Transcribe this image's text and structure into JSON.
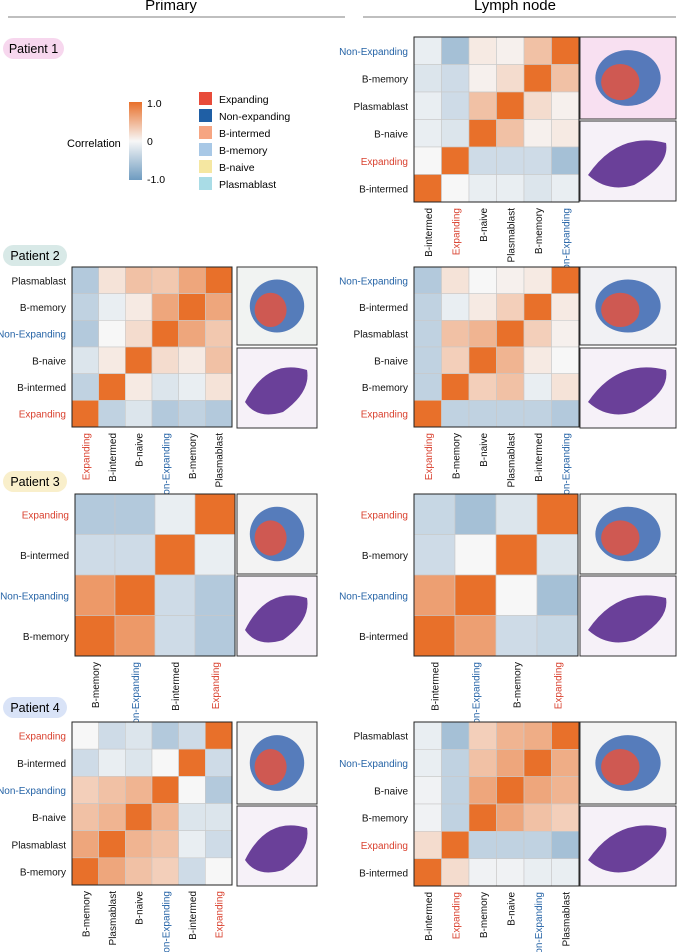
{
  "figure": {
    "col_headers": [
      "Primary",
      "Lymph node"
    ],
    "legend": {
      "title": "Correlation",
      "ticks": [
        "1.0",
        "0",
        "-1.0"
      ],
      "colors": {
        "pos": "#E8702A",
        "mid": "#F7F7F7",
        "neg": "#6E9BC0"
      },
      "celltypes": [
        {
          "label": "Expanding",
          "color": "#E84B3A"
        },
        {
          "label": "Non-expanding",
          "color": "#1F5FA5"
        },
        {
          "label": "B-intermed",
          "color": "#F6A582"
        },
        {
          "label": "B-memory",
          "color": "#A8C8E6"
        },
        {
          "label": "B-naive",
          "color": "#F5E7A1"
        },
        {
          "label": "Plasmablast",
          "color": "#A9DCE6"
        }
      ]
    },
    "label_colors": {
      "Expanding": "#D9412F",
      "Non-Expanding": "#2563A6",
      "default": "#111111"
    },
    "patients": [
      {
        "label": "Patient 1",
        "badge_color": "#F7D7EE"
      },
      {
        "label": "Patient 2",
        "badge_color": "#D8E9E7"
      },
      {
        "label": "Patient 3",
        "badge_color": "#F9EFCB"
      },
      {
        "label": "Patient 4",
        "badge_color": "#D9E3F7"
      }
    ],
    "thumb_colors": {
      "spot_red": "#E4533F",
      "spot_blue": "#3A66B0",
      "he": "#5B2C8E"
    }
  },
  "chart_data": [
    {
      "type": "heatmap",
      "title": "Patient 1 – Lymph node",
      "rows": [
        "Non-Expanding",
        "B-memory",
        "Plasmablast",
        "B-naive",
        "Expanding",
        "B-intermed"
      ],
      "cols": [
        "B-intermed",
        "Expanding",
        "B-naive",
        "Plasmablast",
        "B-memory",
        "Non-Expanding"
      ],
      "values": [
        [
          -0.1,
          -0.6,
          0.1,
          0.05,
          0.4,
          1
        ],
        [
          -0.2,
          -0.3,
          0.05,
          0.2,
          1,
          0.4
        ],
        [
          -0.1,
          -0.3,
          0.4,
          1,
          0.2,
          0.05
        ],
        [
          -0.1,
          -0.2,
          1,
          0.4,
          0.05,
          0.1
        ],
        [
          0.0,
          1,
          -0.3,
          -0.3,
          -0.3,
          -0.6
        ],
        [
          1,
          0.0,
          -0.1,
          -0.1,
          -0.2,
          -0.1
        ]
      ]
    },
    {
      "type": "heatmap",
      "title": "Patient 2 – Primary",
      "rows": [
        "Plasmablast",
        "B-memory",
        "Non-Expanding",
        "B-naive",
        "B-intermed",
        "Expanding"
      ],
      "cols": [
        "Expanding",
        "B-intermed",
        "B-naive",
        "Non-Expanding",
        "B-memory",
        "Plasmablast"
      ],
      "values": [
        [
          -0.5,
          0.15,
          0.4,
          0.35,
          0.6,
          1
        ],
        [
          -0.4,
          -0.1,
          0.1,
          0.6,
          1,
          0.6
        ],
        [
          -0.5,
          0.0,
          0.2,
          1,
          0.6,
          0.35
        ],
        [
          -0.2,
          0.1,
          1,
          0.2,
          0.1,
          0.4
        ],
        [
          -0.4,
          1,
          0.1,
          -0.2,
          -0.1,
          0.15
        ],
        [
          1,
          -0.4,
          -0.2,
          -0.5,
          -0.4,
          -0.5
        ]
      ]
    },
    {
      "type": "heatmap",
      "title": "Patient 2 – Lymph node",
      "rows": [
        "Non-Expanding",
        "B-intermed",
        "Plasmablast",
        "B-naive",
        "B-memory",
        "Expanding"
      ],
      "cols": [
        "Expanding",
        "B-memory",
        "B-naive",
        "Plasmablast",
        "B-intermed",
        "Non-Expanding"
      ],
      "values": [
        [
          -0.5,
          0.15,
          0.0,
          0.05,
          0.1,
          1
        ],
        [
          -0.4,
          -0.1,
          0.1,
          0.3,
          1,
          0.1
        ],
        [
          -0.4,
          0.4,
          0.5,
          1,
          0.3,
          0.05
        ],
        [
          -0.4,
          0.3,
          1,
          0.5,
          0.1,
          0.0
        ],
        [
          -0.4,
          1,
          0.3,
          0.4,
          -0.1,
          0.15
        ],
        [
          1,
          -0.4,
          -0.4,
          -0.4,
          -0.4,
          -0.5
        ]
      ]
    },
    {
      "type": "heatmap",
      "title": "Patient 3 – Primary",
      "rows": [
        "Expanding",
        "B-intermed",
        "Non-Expanding",
        "B-memory"
      ],
      "cols": [
        "B-memory",
        "Non-Expanding",
        "B-intermed",
        "Expanding"
      ],
      "values": [
        [
          -0.5,
          -0.5,
          -0.1,
          1
        ],
        [
          -0.3,
          -0.3,
          1,
          -0.1
        ],
        [
          0.7,
          1,
          -0.3,
          -0.5
        ],
        [
          1,
          0.7,
          -0.3,
          -0.5
        ]
      ]
    },
    {
      "type": "heatmap",
      "title": "Patient 3 – Lymph node",
      "rows": [
        "Expanding",
        "B-memory",
        "Non-Expanding",
        "B-intermed"
      ],
      "cols": [
        "B-intermed",
        "Non-Expanding",
        "B-memory",
        "Expanding"
      ],
      "values": [
        [
          -0.35,
          -0.6,
          -0.2,
          1
        ],
        [
          -0.3,
          0.0,
          1,
          -0.2
        ],
        [
          0.65,
          1,
          0.0,
          -0.6
        ],
        [
          1,
          0.65,
          -0.3,
          -0.35
        ]
      ]
    },
    {
      "type": "heatmap",
      "title": "Patient 4 – Primary",
      "rows": [
        "Expanding",
        "B-intermed",
        "Non-Expanding",
        "B-naive",
        "Plasmablast",
        "B-memory"
      ],
      "cols": [
        "B-memory",
        "Plasmablast",
        "B-naive",
        "Non-Expanding",
        "B-intermed",
        "Expanding"
      ],
      "values": [
        [
          0.0,
          -0.3,
          -0.2,
          -0.5,
          -0.3,
          1
        ],
        [
          -0.3,
          -0.1,
          -0.2,
          0.0,
          1,
          -0.3
        ],
        [
          0.3,
          0.4,
          0.5,
          1,
          0.0,
          -0.5
        ],
        [
          0.4,
          0.5,
          1,
          0.5,
          -0.2,
          -0.2
        ],
        [
          0.6,
          1,
          0.5,
          0.4,
          -0.1,
          -0.3
        ],
        [
          1,
          0.6,
          0.4,
          0.3,
          -0.3,
          0.0
        ]
      ]
    },
    {
      "type": "heatmap",
      "title": "Patient 4 – Lymph node",
      "rows": [
        "Plasmablast",
        "Non-Expanding",
        "B-naive",
        "B-memory",
        "Expanding",
        "B-intermed"
      ],
      "cols": [
        "B-intermed",
        "Expanding",
        "B-memory",
        "B-naive",
        "Non-Expanding",
        "Plasmablast"
      ],
      "values": [
        [
          -0.1,
          -0.6,
          0.3,
          0.5,
          0.55,
          1
        ],
        [
          -0.1,
          -0.4,
          0.4,
          0.6,
          1,
          0.55
        ],
        [
          -0.05,
          -0.4,
          0.6,
          1,
          0.6,
          0.5
        ],
        [
          -0.05,
          -0.4,
          1,
          0.6,
          0.4,
          0.3
        ],
        [
          0.2,
          1,
          -0.4,
          -0.4,
          -0.4,
          -0.6
        ],
        [
          1,
          0.2,
          -0.05,
          -0.05,
          -0.1,
          -0.1
        ]
      ]
    }
  ]
}
